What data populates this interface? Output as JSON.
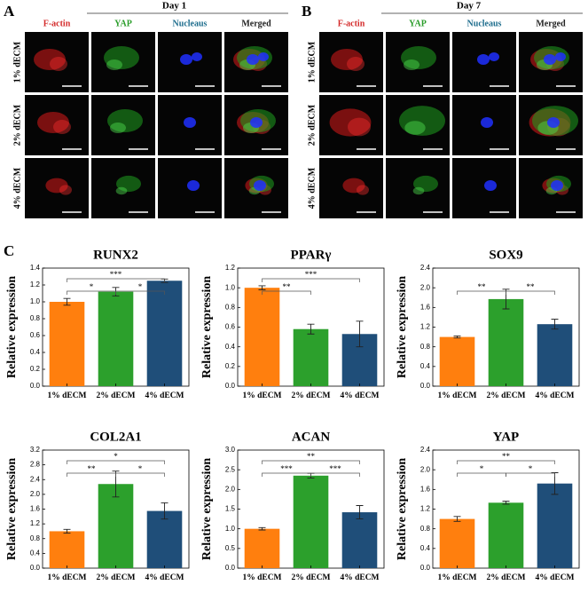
{
  "panel_labels": [
    "A",
    "B",
    "C"
  ],
  "microscopy": [
    {
      "title": "Day 1",
      "columns": [
        "F-actin",
        "YAP",
        "Nucleaus",
        "Merged"
      ],
      "column_colors": [
        "#d42a2a",
        "#2a9d2a",
        "#1f6e8e",
        "#222222"
      ],
      "rows": [
        "1% dECM",
        "2% dECM",
        "4% dECM"
      ]
    },
    {
      "title": "Day 7",
      "columns": [
        "F-actin",
        "YAP",
        "Nucleaus",
        "Merged"
      ],
      "column_colors": [
        "#d42a2a",
        "#2a9d2a",
        "#1f6e8e",
        "#222222"
      ],
      "rows": [
        "1% dECM",
        "2% dECM",
        "4% dECM"
      ]
    }
  ],
  "chart_data": [
    {
      "type": "bar",
      "title": "RUNX2",
      "y_label": "Relative expression",
      "categories": [
        "1% dECM",
        "2% dECM",
        "4% dECM"
      ],
      "values": [
        1.0,
        1.12,
        1.25
      ],
      "errors": [
        0.04,
        0.05,
        0.02
      ],
      "colors": [
        "#ff7f0e",
        "#2ca02c",
        "#1f4e79"
      ],
      "ylim": [
        0,
        1.4
      ],
      "yticks": [
        {
          "value": 0,
          "label": "0.0"
        },
        0.2,
        0.4,
        0.6,
        0.8,
        {
          "value": 1,
          "label": "1.0"
        },
        1.2,
        1.4
      ],
      "annotations": [
        {
          "between": [
            "1% dECM",
            "2% dECM"
          ],
          "label": "*"
        },
        {
          "between": [
            "2% dECM",
            "4% dECM"
          ],
          "label": "*"
        },
        {
          "between": [
            "1% dECM",
            "4% dECM"
          ],
          "label": "***"
        }
      ]
    },
    {
      "type": "bar",
      "title": "PPARγ",
      "y_label": "Relative expression",
      "categories": [
        "1% dECM",
        "2% dECM",
        "4% dECM"
      ],
      "values": [
        1.0,
        0.58,
        0.53
      ],
      "errors": [
        0.02,
        0.05,
        0.13
      ],
      "colors": [
        "#ff7f0e",
        "#2ca02c",
        "#1f4e79"
      ],
      "ylim": [
        0,
        1.2
      ],
      "yticks": [
        {
          "value": 0,
          "label": "0.0"
        },
        0.2,
        0.4,
        0.6,
        0.8,
        {
          "value": 1,
          "label": "1.0"
        },
        1.2
      ],
      "annotations": [
        {
          "between": [
            "1% dECM",
            "2% dECM"
          ],
          "label": "**"
        },
        {
          "between": [
            "1% dECM",
            "4% dECM"
          ],
          "label": "***"
        }
      ]
    },
    {
      "type": "bar",
      "title": "SOX9",
      "y_label": "Relative expression",
      "categories": [
        "1% dECM",
        "2% dECM",
        "4% dECM"
      ],
      "values": [
        1.0,
        1.77,
        1.26
      ],
      "errors": [
        0.02,
        0.2,
        0.1
      ],
      "colors": [
        "#ff7f0e",
        "#2ca02c",
        "#1f4e79"
      ],
      "ylim": [
        0,
        2.4
      ],
      "yticks": [
        {
          "value": 0,
          "label": "0.0"
        },
        0.4,
        0.8,
        1.2,
        1.6,
        {
          "value": 2,
          "label": "2.0"
        },
        2.4
      ],
      "annotations": [
        {
          "between": [
            "1% dECM",
            "2% dECM"
          ],
          "label": "**"
        },
        {
          "between": [
            "2% dECM",
            "4% dECM"
          ],
          "label": "**"
        }
      ]
    },
    {
      "type": "bar",
      "title": "COL2A1",
      "y_label": "Relative expression",
      "categories": [
        "1% dECM",
        "2% dECM",
        "4% dECM"
      ],
      "values": [
        1.0,
        2.28,
        1.55
      ],
      "errors": [
        0.05,
        0.35,
        0.22
      ],
      "colors": [
        "#ff7f0e",
        "#2ca02c",
        "#1f4e79"
      ],
      "ylim": [
        0,
        3.2
      ],
      "yticks": [
        {
          "value": 0,
          "label": "0.0"
        },
        0.4,
        0.8,
        1.2,
        1.6,
        {
          "value": 2,
          "label": "2.0"
        },
        2.4,
        2.8,
        3.2
      ],
      "annotations": [
        {
          "between": [
            "1% dECM",
            "2% dECM"
          ],
          "label": "**"
        },
        {
          "between": [
            "2% dECM",
            "4% dECM"
          ],
          "label": "*"
        },
        {
          "between": [
            "1% dECM",
            "4% dECM"
          ],
          "label": "*"
        }
      ]
    },
    {
      "type": "bar",
      "title": "ACAN",
      "y_label": "Relative expression",
      "categories": [
        "1% dECM",
        "2% dECM",
        "4% dECM"
      ],
      "values": [
        1.0,
        2.35,
        1.42
      ],
      "errors": [
        0.03,
        0.06,
        0.17
      ],
      "colors": [
        "#ff7f0e",
        "#2ca02c",
        "#1f4e79"
      ],
      "ylim": [
        0,
        3.0
      ],
      "yticks": [
        {
          "value": 0,
          "label": "0.0"
        },
        0.5,
        {
          "value": 1,
          "label": "1.0"
        },
        1.5,
        {
          "value": 2,
          "label": "2.0"
        },
        2.5,
        {
          "value": 3,
          "label": "3.0"
        }
      ],
      "annotations": [
        {
          "between": [
            "1% dECM",
            "2% dECM"
          ],
          "label": "***"
        },
        {
          "between": [
            "2% dECM",
            "4% dECM"
          ],
          "label": "***"
        },
        {
          "between": [
            "1% dECM",
            "4% dECM"
          ],
          "label": "**"
        }
      ]
    },
    {
      "type": "bar",
      "title": "YAP",
      "y_label": "Relative expression",
      "categories": [
        "1% dECM",
        "2% dECM",
        "4% dECM"
      ],
      "values": [
        1.0,
        1.33,
        1.72
      ],
      "errors": [
        0.05,
        0.03,
        0.22
      ],
      "colors": [
        "#ff7f0e",
        "#2ca02c",
        "#1f4e79"
      ],
      "ylim": [
        0,
        2.4
      ],
      "yticks": [
        {
          "value": 0,
          "label": "0.0"
        },
        0.4,
        0.8,
        1.2,
        1.6,
        {
          "value": 2,
          "label": "2.0"
        },
        2.4
      ],
      "annotations": [
        {
          "between": [
            "1% dECM",
            "2% dECM"
          ],
          "label": "*"
        },
        {
          "between": [
            "2% dECM",
            "4% dECM"
          ],
          "label": "*"
        },
        {
          "between": [
            "1% dECM",
            "4% dECM"
          ],
          "label": "**"
        }
      ]
    }
  ]
}
